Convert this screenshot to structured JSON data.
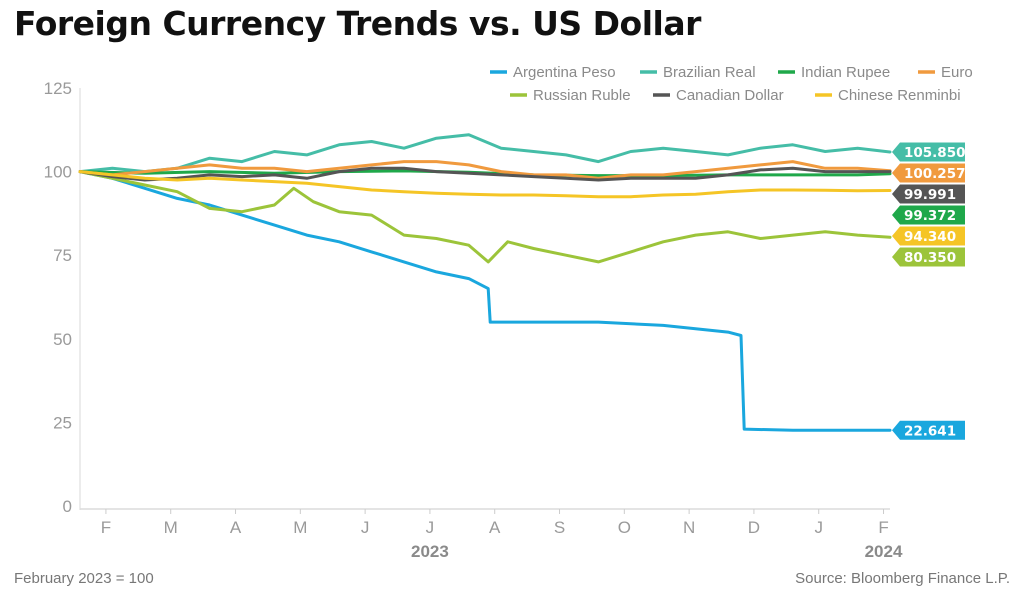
{
  "chart_data": {
    "type": "line",
    "title": "Foreign Currency Trends vs. US Dollar",
    "xlabel": "",
    "ylabel": "",
    "ylim": [
      0,
      125
    ],
    "yticks": [
      0,
      25,
      50,
      75,
      100,
      125
    ],
    "xlim": [
      0,
      12.5
    ],
    "months": [
      "F",
      "M",
      "A",
      "M",
      "J",
      "J",
      "A",
      "S",
      "O",
      "N",
      "D",
      "J",
      "F"
    ],
    "years": [
      {
        "label": "2023",
        "x": 5
      },
      {
        "label": "2024",
        "x": 12
      }
    ],
    "legend_position": "top-right",
    "footnote": "February 2023 = 100",
    "source": "Source: Bloomberg Finance L.P.",
    "series": [
      {
        "name": "Argentina Peso",
        "color": "#1aa7de",
        "end_value": "22.641",
        "points": [
          [
            0,
            100
          ],
          [
            0.5,
            98
          ],
          [
            1,
            95
          ],
          [
            1.5,
            92
          ],
          [
            2,
            90
          ],
          [
            2.5,
            87
          ],
          [
            3,
            84
          ],
          [
            3.5,
            81
          ],
          [
            4,
            79
          ],
          [
            4.5,
            76
          ],
          [
            5,
            73
          ],
          [
            5.5,
            70
          ],
          [
            6,
            68
          ],
          [
            6.3,
            65
          ],
          [
            6.33,
            55
          ],
          [
            7,
            55
          ],
          [
            8,
            55
          ],
          [
            9,
            54
          ],
          [
            10,
            52
          ],
          [
            10.2,
            51
          ],
          [
            10.25,
            23
          ],
          [
            11,
            22.641
          ],
          [
            12.5,
            22.641
          ]
        ]
      },
      {
        "name": "Brazilian Real",
        "color": "#45bda7",
        "end_value": "105.850",
        "points": [
          [
            0,
            100
          ],
          [
            0.5,
            101
          ],
          [
            1,
            100
          ],
          [
            1.5,
            101
          ],
          [
            2,
            104
          ],
          [
            2.5,
            103
          ],
          [
            3,
            106
          ],
          [
            3.5,
            105
          ],
          [
            4,
            108
          ],
          [
            4.5,
            109
          ],
          [
            5,
            107
          ],
          [
            5.5,
            110
          ],
          [
            6,
            111
          ],
          [
            6.5,
            107
          ],
          [
            7,
            106
          ],
          [
            7.5,
            105
          ],
          [
            8,
            103
          ],
          [
            8.5,
            106
          ],
          [
            9,
            107
          ],
          [
            9.5,
            106
          ],
          [
            10,
            105
          ],
          [
            10.5,
            107
          ],
          [
            11,
            108
          ],
          [
            11.5,
            106
          ],
          [
            12,
            107
          ],
          [
            12.5,
            105.85
          ]
        ]
      },
      {
        "name": "Indian Rupee",
        "color": "#1fa84a",
        "end_value": "99.372",
        "points": [
          [
            0,
            100
          ],
          [
            1,
            99.5
          ],
          [
            2,
            100
          ],
          [
            3,
            99.5
          ],
          [
            4,
            100
          ],
          [
            5,
            100.2
          ],
          [
            6,
            99.8
          ],
          [
            7,
            99
          ],
          [
            8,
            98.8
          ],
          [
            9,
            98.8
          ],
          [
            10,
            99
          ],
          [
            11,
            99
          ],
          [
            12,
            99
          ],
          [
            12.5,
            99.372
          ]
        ]
      },
      {
        "name": "Euro",
        "color": "#f09a3e",
        "end_value": "100.257",
        "points": [
          [
            0,
            100
          ],
          [
            0.5,
            99
          ],
          [
            1,
            100
          ],
          [
            1.5,
            101
          ],
          [
            2,
            102
          ],
          [
            2.5,
            101
          ],
          [
            3,
            101
          ],
          [
            3.5,
            100
          ],
          [
            4,
            101
          ],
          [
            4.5,
            102
          ],
          [
            5,
            103
          ],
          [
            5.5,
            103
          ],
          [
            6,
            102
          ],
          [
            6.5,
            100
          ],
          [
            7,
            99
          ],
          [
            7.5,
            99
          ],
          [
            8,
            98
          ],
          [
            8.5,
            99
          ],
          [
            9,
            99
          ],
          [
            9.5,
            100
          ],
          [
            10,
            101
          ],
          [
            10.5,
            102
          ],
          [
            11,
            103
          ],
          [
            11.5,
            101
          ],
          [
            12,
            101
          ],
          [
            12.5,
            100.257
          ]
        ]
      },
      {
        "name": "Russian Ruble",
        "color": "#9cc43a",
        "end_value": "80.350",
        "points": [
          [
            0,
            100
          ],
          [
            0.5,
            98
          ],
          [
            1,
            96
          ],
          [
            1.5,
            94
          ],
          [
            2,
            89
          ],
          [
            2.5,
            88
          ],
          [
            3,
            90
          ],
          [
            3.3,
            95
          ],
          [
            3.6,
            91
          ],
          [
            4,
            88
          ],
          [
            4.5,
            87
          ],
          [
            5,
            81
          ],
          [
            5.5,
            80
          ],
          [
            6,
            78
          ],
          [
            6.3,
            73
          ],
          [
            6.6,
            79
          ],
          [
            7,
            77
          ],
          [
            7.5,
            75
          ],
          [
            8,
            73
          ],
          [
            8.5,
            76
          ],
          [
            9,
            79
          ],
          [
            9.5,
            81
          ],
          [
            10,
            82
          ],
          [
            10.5,
            80
          ],
          [
            11,
            81
          ],
          [
            11.5,
            82
          ],
          [
            12,
            81
          ],
          [
            12.5,
            80.35
          ]
        ]
      },
      {
        "name": "Canadian Dollar",
        "color": "#555555",
        "end_value": "99.991",
        "points": [
          [
            0,
            100
          ],
          [
            0.5,
            98.5
          ],
          [
            1,
            97.5
          ],
          [
            1.5,
            98
          ],
          [
            2,
            99
          ],
          [
            2.5,
            98.5
          ],
          [
            3,
            99
          ],
          [
            3.5,
            98
          ],
          [
            4,
            100
          ],
          [
            4.5,
            101
          ],
          [
            5,
            101
          ],
          [
            5.5,
            100
          ],
          [
            6,
            99.5
          ],
          [
            6.5,
            99
          ],
          [
            7,
            98.5
          ],
          [
            7.5,
            98
          ],
          [
            8,
            97.5
          ],
          [
            8.5,
            98
          ],
          [
            9,
            98
          ],
          [
            9.5,
            98
          ],
          [
            10,
            99
          ],
          [
            10.5,
            100.5
          ],
          [
            11,
            101
          ],
          [
            11.5,
            100
          ],
          [
            12,
            100
          ],
          [
            12.5,
            99.991
          ]
        ]
      },
      {
        "name": "Chinese Renminbi",
        "color": "#f5c526",
        "end_value": "94.340",
        "points": [
          [
            0,
            100
          ],
          [
            0.5,
            99
          ],
          [
            1,
            98
          ],
          [
            1.5,
            97.5
          ],
          [
            2,
            98
          ],
          [
            2.5,
            97.5
          ],
          [
            3,
            97
          ],
          [
            3.5,
            96.5
          ],
          [
            4,
            95.5
          ],
          [
            4.5,
            94.5
          ],
          [
            5,
            94
          ],
          [
            5.5,
            93.5
          ],
          [
            6,
            93.2
          ],
          [
            6.5,
            93
          ],
          [
            7,
            93
          ],
          [
            7.5,
            92.8
          ],
          [
            8,
            92.5
          ],
          [
            8.5,
            92.5
          ],
          [
            9,
            93
          ],
          [
            9.5,
            93.2
          ],
          [
            10,
            94
          ],
          [
            10.5,
            94.5
          ],
          [
            11,
            94.5
          ],
          [
            11.5,
            94.4
          ],
          [
            12,
            94.3
          ],
          [
            12.5,
            94.34
          ]
        ]
      }
    ]
  }
}
